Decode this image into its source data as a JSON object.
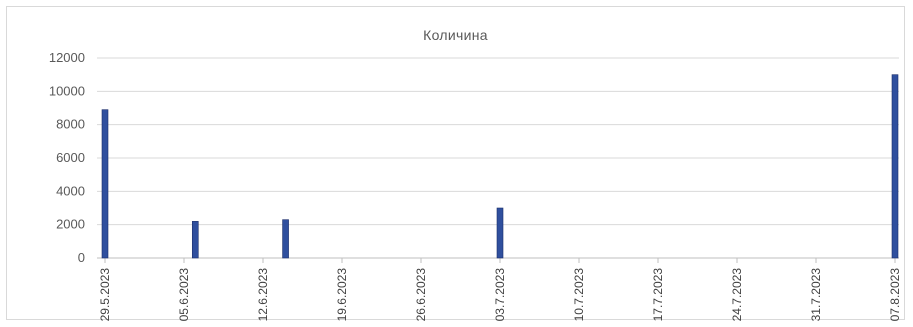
{
  "chart_data": {
    "type": "bar",
    "title": "Количина",
    "xlabel": "",
    "ylabel": "",
    "ylim": [
      0,
      12000
    ],
    "yticks": [
      0,
      2000,
      4000,
      6000,
      8000,
      10000,
      12000
    ],
    "grid": true,
    "legend": "none",
    "bar_color": "#2f4f9e",
    "x_axis_type": "date",
    "x_range": [
      "29.5.2023",
      "07.8.2023"
    ],
    "x_tick_labels": [
      "29.5.2023",
      "05.6.2023",
      "12.6.2023",
      "19.6.2023",
      "26.6.2023",
      "03.7.2023",
      "10.7.2023",
      "17.7.2023",
      "24.7.2023",
      "31.7.2023",
      "07.8.2023"
    ],
    "points": [
      {
        "date": "29.5.2023",
        "value": 8900
      },
      {
        "date": "06.6.2023",
        "value": 2200
      },
      {
        "date": "14.6.2023",
        "value": 2300
      },
      {
        "date": "03.7.2023",
        "value": 3000
      },
      {
        "date": "07.8.2023",
        "value": 11000
      }
    ]
  }
}
